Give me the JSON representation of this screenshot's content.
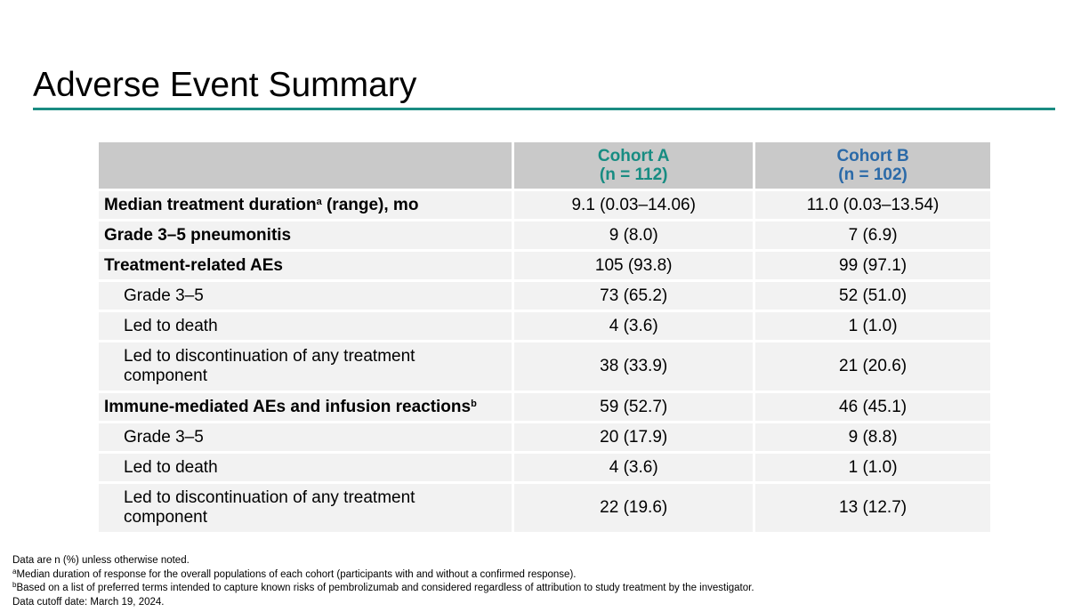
{
  "slide": {
    "title": "Adverse Event Summary"
  },
  "table": {
    "header": {
      "label": "",
      "cohort_a_name": "Cohort A",
      "cohort_a_n": "(n = 112)",
      "cohort_b_name": "Cohort B",
      "cohort_b_n": "(n = 102)"
    },
    "rows": [
      {
        "label": "Median treatment duration",
        "sup": "a",
        "label_suffix": " (range), mo",
        "a": "9.1 (0.03–14.06)",
        "b": "11.0 (0.03–13.54)"
      },
      {
        "label": "Grade 3–5 pneumonitis",
        "a": "9 (8.0)",
        "b": "7 (6.9)"
      },
      {
        "label": "Treatment-related AEs",
        "a": "105 (93.8)",
        "b": "99 (97.1)"
      },
      {
        "label": "Grade 3–5",
        "a": "73 (65.2)",
        "b": "52 (51.0)"
      },
      {
        "label": "Led to death",
        "a": "4 (3.6)",
        "b": "1 (1.0)"
      },
      {
        "label_line1": "Led to discontinuation of any treatment",
        "label_line2": "component",
        "a": "38 (33.9)",
        "b": "21 (20.6)"
      },
      {
        "label": "Immune-mediated AEs and infusion reactions",
        "sup": "b",
        "a": "59 (52.7)",
        "b": "46 (45.1)"
      },
      {
        "label": "Grade 3–5",
        "a": "20 (17.9)",
        "b": "9 (8.8)"
      },
      {
        "label": "Led to death",
        "a": "4 (3.6)",
        "b": "1 (1.0)"
      },
      {
        "label_line1": "Led to discontinuation of any treatment",
        "label_line2": "component",
        "a": "22 (19.6)",
        "b": "13 (12.7)"
      }
    ]
  },
  "footnotes": {
    "line1": "Data are n (%) unless otherwise noted.",
    "line2_sup": "a",
    "line2": "Median duration of response for the overall populations of each cohort (participants with and without a confirmed response).",
    "line3_sup": "b",
    "line3": "Based on a list of preferred terms intended to capture known risks of pembrolizumab and considered regardless of attribution to study treatment by the investigator.",
    "line4": "Data cutoff date: March 19, 2024."
  },
  "colors": {
    "accent_rule": "#1a8c82",
    "cohort_a": "#178c82",
    "cohort_b": "#2b6aa8",
    "header_bg": "#c9c9c9",
    "row_bg": "#f2f2f2"
  }
}
